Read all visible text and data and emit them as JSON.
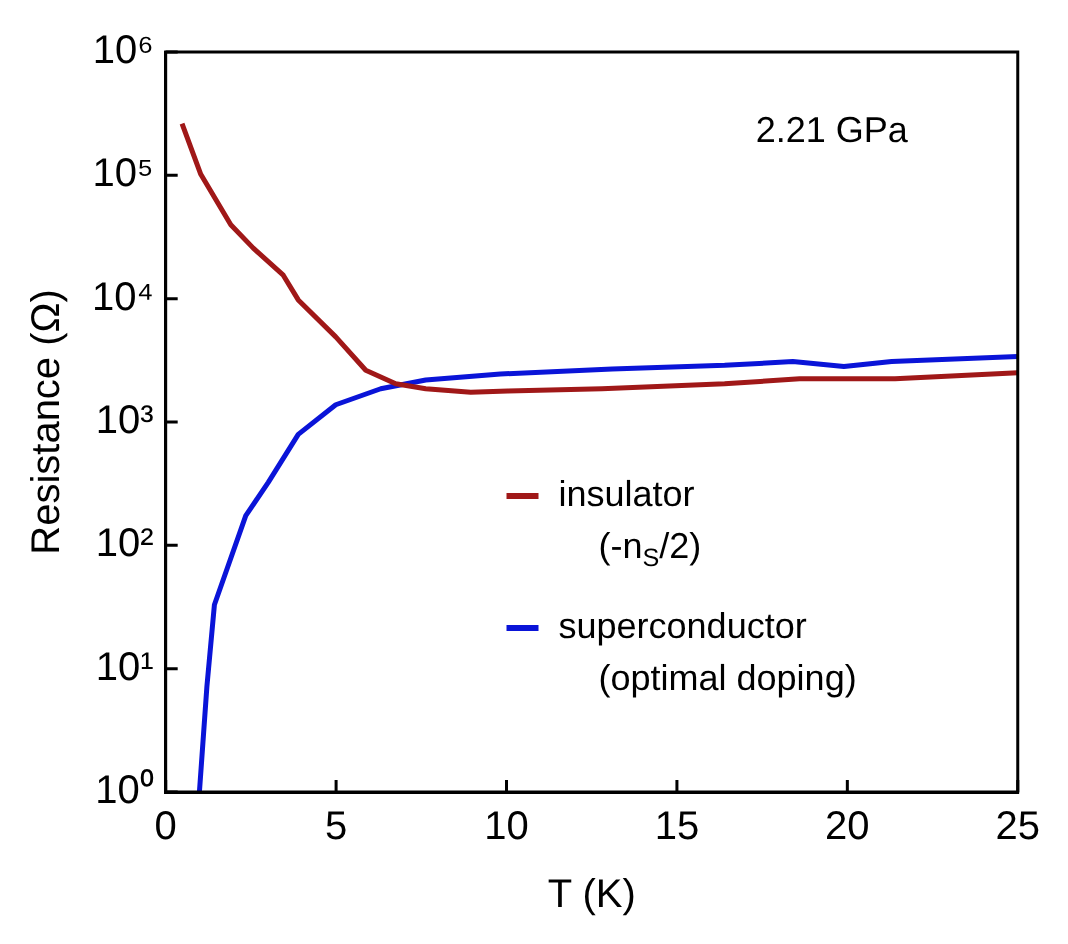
{
  "chart_data": {
    "type": "line",
    "xlabel": "T (K)",
    "ylabel": "Resistance (Ω)",
    "log": "y",
    "xlim": [
      0,
      25
    ],
    "xticks": [
      0,
      5,
      10,
      15,
      20,
      25
    ],
    "ylim": [
      1,
      1000000
    ],
    "yticks": [
      {
        "value": 1,
        "label": "10⁰"
      },
      {
        "value": 10,
        "label": "10¹"
      },
      {
        "value": 100,
        "label": "10²"
      },
      {
        "value": 1000,
        "label": "10³"
      },
      {
        "value": 10000,
        "label": "10⁴"
      },
      {
        "value": 100000,
        "label": "10⁵"
      },
      {
        "value": 1000000,
        "label": "10⁶"
      }
    ],
    "grid": false,
    "legend": "right",
    "marker": "none",
    "line_style": "solid",
    "annotations": [
      "2.21 GPa"
    ],
    "series": [
      {
        "name": "insulator\n(-n$_{S}$/2)",
        "color": "#a01818",
        "x": [
          0.48,
          1.03,
          1.91,
          2.57,
          3.45,
          3.89,
          4.99,
          5.87,
          6.75,
          7.63,
          8.95,
          10.04,
          12.8,
          16.4,
          18.6,
          21.4,
          25
        ],
        "values": [
          263000,
          102000,
          39800,
          25700,
          15500,
          9770,
          4900,
          2630,
          2040,
          1860,
          1740,
          1780,
          1860,
          2040,
          2240,
          2240,
          2510
        ]
      },
      {
        "name": "superconductor\n(optimal doping)",
        "color": "#0a14d8",
        "x": [
          0.99,
          1.21,
          1.43,
          2.35,
          3.01,
          3.89,
          4.99,
          6.31,
          7.63,
          9.82,
          13.1,
          16.4,
          18.4,
          19.9,
          21.3,
          25
        ],
        "values": [
          1,
          7.2,
          33,
          174,
          324,
          794,
          1380,
          1860,
          2190,
          2450,
          2690,
          2880,
          3090,
          2820,
          3090,
          3390
        ]
      }
    ]
  }
}
